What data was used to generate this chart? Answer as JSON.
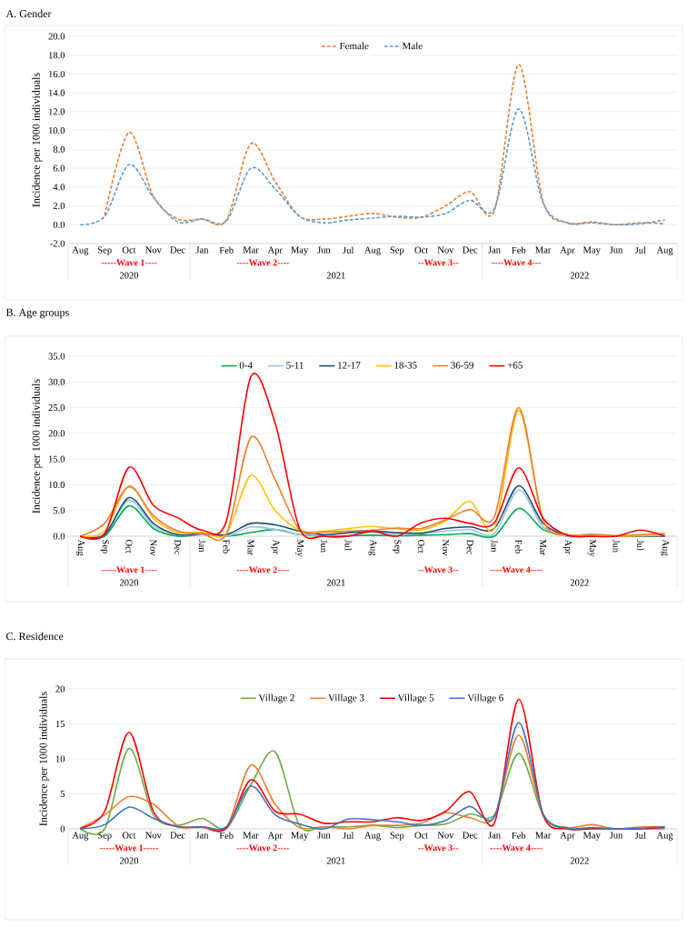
{
  "chart_data": [
    {
      "type": "line",
      "title": "A. Gender",
      "ylabel": "Incidence per 1000 individuals",
      "categories": [
        "Aug",
        "Sep",
        "Oct",
        "Nov",
        "Dec",
        "Jan",
        "Feb",
        "Mar",
        "Apr",
        "May",
        "Jun",
        "Jul",
        "Aug",
        "Sep",
        "Oct",
        "Nov",
        "Dec",
        "Jan",
        "Feb",
        "Mar",
        "Apr",
        "May",
        "Jun",
        "Jul",
        "Aug"
      ],
      "series": [
        {
          "name": "Female",
          "color": "#ed7d31",
          "values": [
            null,
            1.0,
            9.8,
            3.0,
            0.6,
            0.6,
            0.5,
            8.6,
            4.6,
            0.9,
            0.6,
            0.9,
            1.2,
            0.8,
            0.8,
            2.0,
            3.5,
            1.5,
            17.0,
            2.5,
            0.2,
            0.3,
            0.0,
            0.2,
            0.1
          ]
        },
        {
          "name": "Male",
          "color": "#5b9bd5",
          "values": [
            0.0,
            0.9,
            6.4,
            2.9,
            0.3,
            0.6,
            0.4,
            6.0,
            3.8,
            0.9,
            0.2,
            0.5,
            0.7,
            0.9,
            0.8,
            1.2,
            2.6,
            1.7,
            12.3,
            2.3,
            0.2,
            0.2,
            0.0,
            0.1,
            0.5
          ]
        }
      ],
      "ylim": [
        -2,
        20
      ],
      "yticks": [
        {
          "value": -2,
          "label": "-2.0"
        },
        {
          "value": 0,
          "label": "0.0"
        },
        {
          "value": 2,
          "label": "2.0"
        },
        {
          "value": 4,
          "label": "4.0"
        },
        {
          "value": 6,
          "label": "6.0"
        },
        {
          "value": 8,
          "label": "8.0"
        },
        {
          "value": 10,
          "label": "10.0"
        },
        {
          "value": 12,
          "label": "12.0"
        },
        {
          "value": 14,
          "label": "14.0"
        },
        {
          "value": 16,
          "label": "16.0"
        },
        {
          "value": 18,
          "label": "18.0"
        },
        {
          "value": 20,
          "label": "20.0"
        }
      ],
      "grid": "y",
      "legend": "top",
      "line_style": "dashed",
      "annotations": [
        "-----Wave 1----",
        "----Wave 2----",
        "--Wave 3--",
        "----Wave 4---",
        "2020",
        "2021",
        "2022"
      ]
    },
    {
      "type": "line",
      "title": "B. Age groups",
      "ylabel": "Incidence per 1000 individuals",
      "categories": [
        "Aug",
        "Sep",
        "Oct",
        "Nov",
        "Dec",
        "Jan",
        "Feb",
        "Mar",
        "Apr",
        "May",
        "Jun",
        "Jul",
        "Aug",
        "Sep",
        "Oct",
        "Nov",
        "Dec",
        "Jan",
        "Feb",
        "Mar",
        "Apr",
        "May",
        "Jun",
        "Jul",
        "Aug"
      ],
      "series": [
        {
          "name": "0-4",
          "color": "#00b050",
          "values": [
            0,
            0,
            5.9,
            1.5,
            0,
            0.3,
            0,
            0.7,
            1.3,
            0.3,
            0,
            0.1,
            0.2,
            0.1,
            0.2,
            0.3,
            0.5,
            0,
            5.4,
            1.3,
            0,
            0,
            null,
            null,
            null
          ]
        },
        {
          "name": "5-11",
          "color": "#9dc3e6",
          "values": [
            0,
            0.5,
            7.0,
            2.0,
            0.3,
            0.3,
            0,
            1.8,
            1.3,
            0.3,
            0.2,
            0.6,
            0.7,
            0.5,
            0.5,
            1.0,
            1.3,
            0.5,
            9.0,
            1.8,
            0,
            0,
            null,
            null,
            null
          ]
        },
        {
          "name": "12-17",
          "color": "#1f4e79",
          "values": [
            0,
            0.3,
            7.5,
            2.5,
            0.3,
            0.5,
            0.3,
            2.5,
            2.2,
            1.0,
            0.3,
            0.7,
            1.0,
            0.7,
            0.6,
            1.5,
            1.8,
            1.5,
            9.8,
            2.5,
            0.2,
            0,
            0,
            0,
            0
          ]
        },
        {
          "name": "18-35",
          "color": "#ffc000",
          "values": [
            0,
            1.0,
            9.8,
            3.5,
            0.7,
            0.8,
            0.5,
            11.8,
            5.0,
            1.2,
            1.0,
            1.5,
            1.9,
            1.4,
            1.2,
            3.0,
            6.8,
            1.5,
            24.5,
            3.0,
            0.3,
            0.2,
            0,
            0.1,
            0.2
          ]
        },
        {
          "name": "36-59",
          "color": "#ed7d31",
          "values": [
            0,
            2.5,
            9.6,
            4.0,
            1.0,
            0.5,
            0.5,
            19.2,
            11.0,
            1.3,
            0.8,
            1.0,
            1.2,
            1.6,
            1.5,
            3.2,
            5.2,
            3.8,
            25.0,
            3.2,
            0.3,
            0.4,
            0.1,
            0.3,
            0.5
          ]
        },
        {
          "name": "+65",
          "color": "#ff0000",
          "values": [
            0,
            0.5,
            13.4,
            6.0,
            3.6,
            1.2,
            3.0,
            31.0,
            22.0,
            1.5,
            0,
            0,
            1.0,
            0,
            2.6,
            3.5,
            2.5,
            2.6,
            13.3,
            3.5,
            0.2,
            0,
            0,
            1.2,
            0
          ]
        }
      ],
      "ylim": [
        0,
        35
      ],
      "yticks": [
        {
          "value": 0,
          "label": "0.0"
        },
        {
          "value": 5,
          "label": "5.0"
        },
        {
          "value": 10,
          "label": "10.0"
        },
        {
          "value": 15,
          "label": "15.0"
        },
        {
          "value": 20,
          "label": "20.0"
        },
        {
          "value": 25,
          "label": "25.0"
        },
        {
          "value": 30,
          "label": "30.0"
        },
        {
          "value": 35,
          "label": "35.0"
        }
      ],
      "grid": "y",
      "legend": "top",
      "line_style": "solid",
      "annotations": [
        "-----Wave 1----",
        "----Wave 2----",
        "--Wave 3--",
        "----Wave 4----",
        "2020",
        "2021",
        "2022"
      ]
    },
    {
      "type": "line",
      "title": "C. Residence",
      "ylabel": "Incidence per 1000 individuals",
      "categories": [
        "Aug",
        "Sep",
        "Oct",
        "Nov",
        "Dec",
        "Jan",
        "Feb",
        "Mar",
        "Apr",
        "May",
        "Jun",
        "Jul",
        "Aug",
        "Sep",
        "Oct",
        "Nov",
        "Dec",
        "Jan",
        "Feb",
        "Mar",
        "Apr",
        "May",
        "Jun",
        "Jul",
        "Aug"
      ],
      "series": [
        {
          "name": "Village 2",
          "color": "#70ad47",
          "values": [
            0,
            0,
            11.5,
            2.0,
            0.5,
            1.5,
            0.1,
            6.3,
            11.0,
            0.5,
            0.3,
            0.3,
            0.5,
            0.2,
            0.5,
            0.7,
            2.1,
            2.0,
            10.8,
            2.0,
            0,
            0.1,
            0,
            0,
            0
          ]
        },
        {
          "name": "Village 3",
          "color": "#ed7d31",
          "values": [
            0.1,
            2.0,
            4.6,
            3.5,
            0.5,
            0.2,
            0.2,
            9.1,
            3.5,
            0.2,
            0.3,
            0,
            0.5,
            0.5,
            0.8,
            2.3,
            1.6,
            1.7,
            13.4,
            2.0,
            0.2,
            0.6,
            0,
            0.3,
            0.3
          ]
        },
        {
          "name": "Village 5",
          "color": "#ff0000",
          "values": [
            0.1,
            2.5,
            13.8,
            2.5,
            0.3,
            0.3,
            0.1,
            7.0,
            2.5,
            2.1,
            0.8,
            1.0,
            1.0,
            1.6,
            1.2,
            2.5,
            5.3,
            0.8,
            18.5,
            2.0,
            0,
            0,
            0,
            0,
            0.2
          ]
        },
        {
          "name": "Village 6",
          "color": "#4472c4",
          "values": [
            0,
            0.6,
            3.1,
            1.5,
            0.3,
            0.3,
            0.3,
            6.1,
            2.0,
            0.7,
            0,
            1.4,
            1.3,
            1.0,
            0.5,
            1.2,
            3.2,
            1.7,
            15.2,
            2.2,
            0.1,
            0.2,
            0,
            0.1,
            0.3
          ]
        }
      ],
      "ylim": [
        0,
        20
      ],
      "yticks": [
        0,
        5,
        10,
        15,
        20
      ],
      "grid": "y",
      "legend": "top",
      "line_style": "solid",
      "annotations": [
        "-----Wave 1-----",
        "----Wave 2----",
        "--Wave 3--",
        "----Wave 4----",
        "2020",
        "2021",
        "2022"
      ]
    }
  ]
}
